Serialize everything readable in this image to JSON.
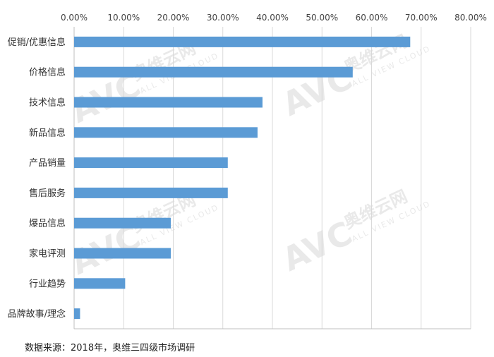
{
  "chart_data": {
    "type": "bar",
    "orientation": "horizontal",
    "categories": [
      "促销/优惠信息",
      "价格信息",
      "技术信息",
      "新品信息",
      "产品销量",
      "售后服务",
      "爆品信息",
      "家电评测",
      "行业趋势",
      "品牌故事/理念"
    ],
    "values": [
      67.8,
      56.2,
      38.0,
      37.0,
      31.0,
      31.0,
      19.5,
      19.5,
      10.3,
      1.2
    ],
    "x_ticks": [
      "0.00%",
      "10.00%",
      "20.00%",
      "30.00%",
      "40.00%",
      "50.00%",
      "60.00%",
      "70.00%",
      "80.00%"
    ],
    "xlim": [
      0,
      80
    ],
    "x_axis_position": "top",
    "grid": true,
    "bar_color": "#5b9bd5",
    "title": "",
    "xlabel": "",
    "ylabel": ""
  },
  "source_note": "数据来源：2018年，奥维三四级市场调研",
  "watermark": {
    "logo": "AVC",
    "brand_cn": "奥维云网",
    "brand_en": "ALL VIEW CLOUD"
  }
}
